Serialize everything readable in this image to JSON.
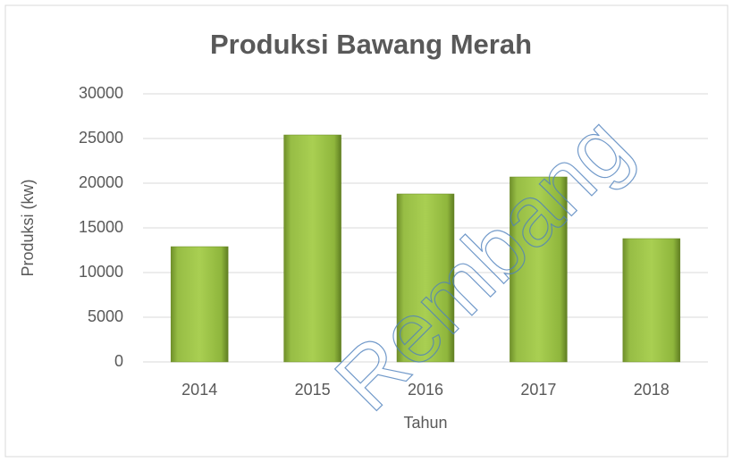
{
  "chart_data": {
    "type": "bar",
    "title": "Produksi Bawang Merah",
    "x_label": "Tahun",
    "y_label": "Produksi (kw)",
    "categories": [
      "2014",
      "2015",
      "2016",
      "2017",
      "2018"
    ],
    "values": [
      12900,
      25400,
      18800,
      20700,
      13800
    ],
    "color": "#9bbb59",
    "ylim": [
      0,
      30000
    ],
    "yticks": [
      0,
      5000,
      10000,
      15000,
      20000,
      25000,
      30000
    ],
    "grid": true,
    "watermark": "Rembang"
  }
}
